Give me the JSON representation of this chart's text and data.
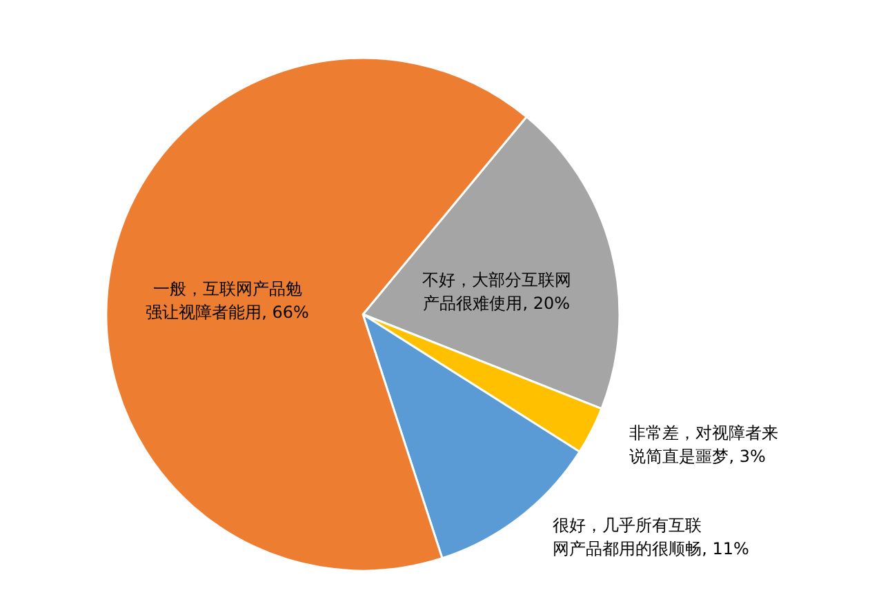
{
  "chart_data": {
    "type": "pie",
    "categories": [
      "不好，大部分互联网产品很难使用",
      "非常差，对视障者来说简直是噩梦",
      "很好，几乎所有互联网产品都用的很顺畅",
      "一般，互联网产品勉强让视障者能用"
    ],
    "values": [
      20,
      3,
      11,
      66
    ],
    "value_labels": [
      "20%",
      "3%",
      "11%",
      "66%"
    ],
    "colors": [
      "#a5a5a5",
      "#ffc000",
      "#5b9bd5",
      "#ed7d31"
    ],
    "legend": false
  }
}
